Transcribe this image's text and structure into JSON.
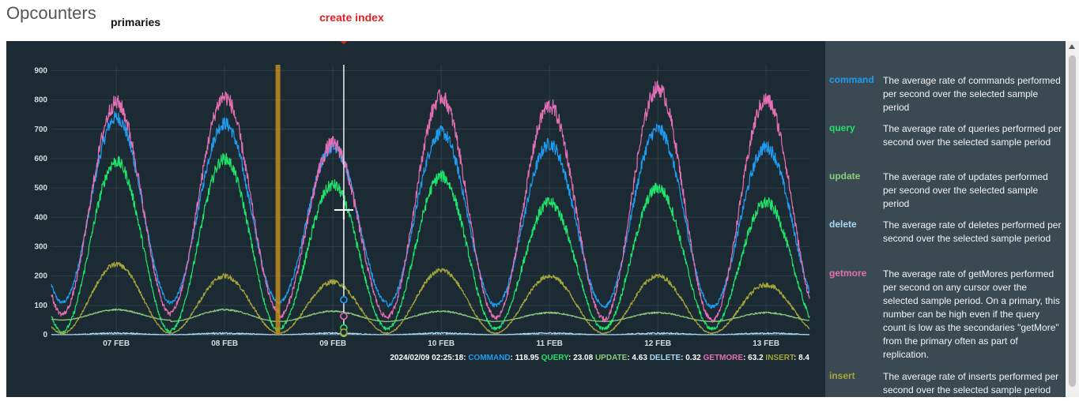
{
  "header": {
    "title": "Opcounters",
    "subtitle": "primaries"
  },
  "annotation": {
    "label": "create index",
    "color": "#e02020"
  },
  "chart_data": {
    "type": "line",
    "x_ticks": [
      "07 FEB",
      "08 FEB",
      "09 FEB",
      "10 FEB",
      "11 FEB",
      "12 FEB",
      "13 FEB"
    ],
    "yticks": [
      0,
      100,
      200,
      300,
      400,
      500,
      600,
      700,
      800,
      900
    ],
    "ylim": [
      0,
      920
    ],
    "xlim_days": [
      6.4,
      13.4
    ],
    "grid": true,
    "tooltip": {
      "timestamp": "2024/02/09 02:25:18:",
      "entries": [
        {
          "label": "COMMAND",
          "value": "118.95",
          "color": "#1e9cf2"
        },
        {
          "label": "QUERY",
          "value": "23.08",
          "color": "#1fe46a"
        },
        {
          "label": "UPDATE",
          "value": "4.63",
          "color": "#8ccb7e"
        },
        {
          "label": "DELETE",
          "value": "0.32",
          "color": "#a8d8f6"
        },
        {
          "label": "GETMORE",
          "value": "63.2",
          "color": "#e36fb4"
        },
        {
          "label": "INSERT",
          "value": "8.4",
          "color": "#a5a63a"
        }
      ]
    },
    "series": [
      {
        "name": "command",
        "color": "#1e9cf2",
        "peaks": [
          740,
          720,
          640,
          690,
          650,
          700,
          640
        ],
        "troughs": [
          110,
          110,
          110,
          100,
          100,
          95,
          95
        ]
      },
      {
        "name": "query",
        "color": "#1fe46a",
        "peaks": [
          590,
          600,
          510,
          540,
          450,
          500,
          450
        ],
        "troughs": [
          10,
          15,
          20,
          20,
          20,
          20,
          20
        ]
      },
      {
        "name": "update",
        "color": "#8ccb7e",
        "peaks": [
          85,
          85,
          80,
          80,
          75,
          75,
          75
        ],
        "troughs": [
          50,
          45,
          45,
          45,
          45,
          45,
          45
        ]
      },
      {
        "name": "delete",
        "color": "#a8d8f6",
        "peaks": [
          5,
          5,
          5,
          5,
          5,
          5,
          5
        ],
        "troughs": [
          0,
          0,
          0,
          0,
          0,
          0,
          0
        ]
      },
      {
        "name": "getmore",
        "color": "#e36fb4",
        "peaks": [
          790,
          810,
          650,
          810,
          780,
          840,
          800
        ],
        "troughs": [
          70,
          80,
          60,
          60,
          55,
          50,
          50
        ]
      },
      {
        "name": "insert",
        "color": "#a5a63a",
        "peaks": [
          240,
          200,
          180,
          220,
          200,
          200,
          170
        ],
        "troughs": [
          5,
          5,
          5,
          5,
          5,
          5,
          5
        ]
      }
    ]
  },
  "legend": [
    {
      "name": "command",
      "color": "#1e9cf2",
      "description": "The average rate of commands performed per second over the selected sample period"
    },
    {
      "name": "query",
      "color": "#1fe46a",
      "description": "The average rate of queries performed per second over the selected sample period"
    },
    {
      "name": "update",
      "color": "#8ccb7e",
      "description": "The average rate of updates performed per second over the selected sample period"
    },
    {
      "name": "delete",
      "color": "#a8d8f6",
      "description": "The average rate of deletes performed per second over the selected sample period"
    },
    {
      "name": "getmore",
      "color": "#e36fb4",
      "description": "The average rate of getMores performed per second on any cursor over the selected sample period. On a primary, this number can be high even if the query count is low as the secondaries \"getMore\" from the primary often as part of replication."
    },
    {
      "name": "insert",
      "color": "#a5a63a",
      "description": "The average rate of inserts performed per second over the selected sample period"
    }
  ]
}
